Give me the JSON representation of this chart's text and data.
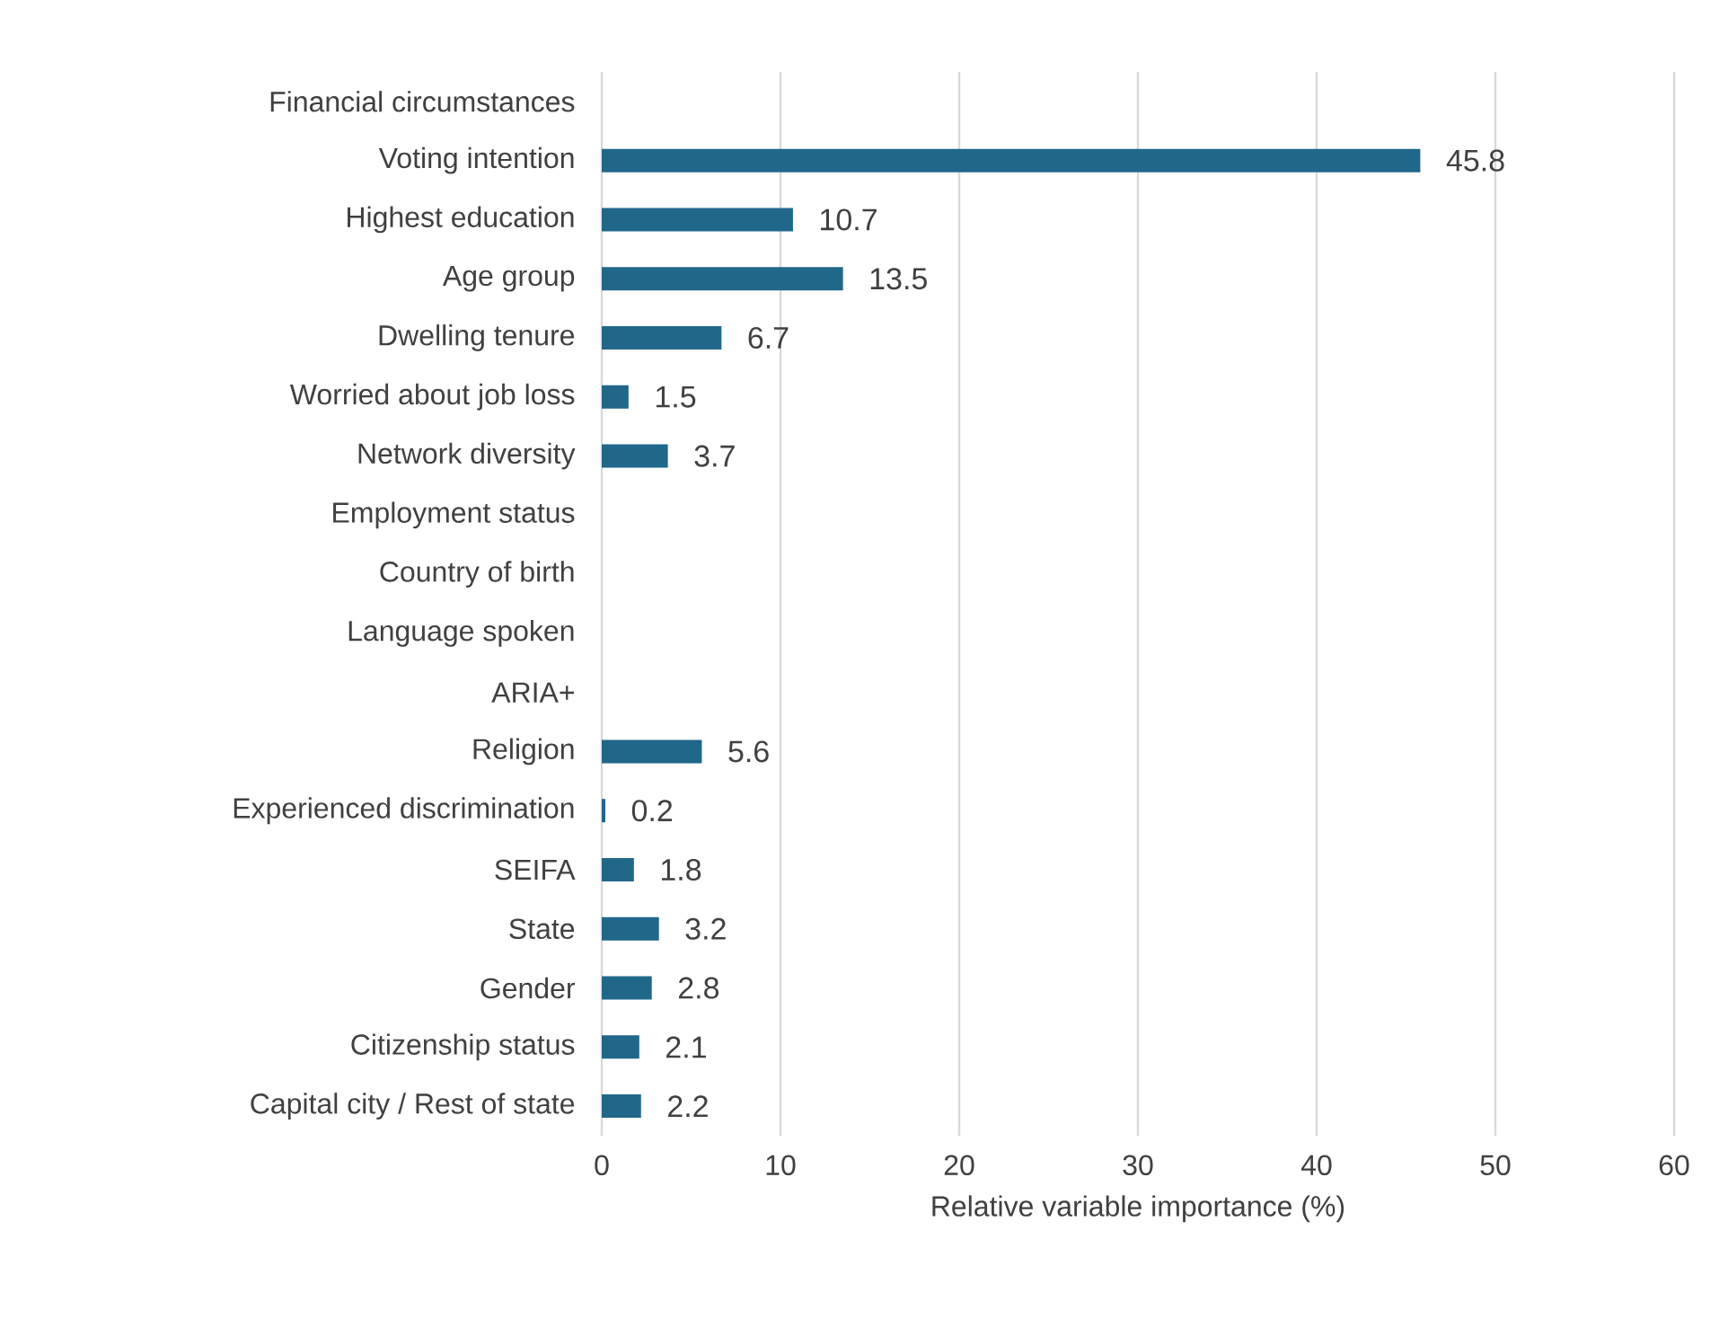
{
  "chart_data": {
    "type": "bar",
    "orientation": "horizontal",
    "categories": [
      "Financial circumstances",
      "Voting intention",
      "Highest education",
      "Age group",
      "Dwelling tenure",
      "Worried about job loss",
      "Network diversity",
      "Employment status",
      "Country of birth",
      "Language spoken",
      "ARIA+",
      "Religion",
      "Experienced discrimination",
      "SEIFA",
      "State",
      "Gender",
      "Citizenship status",
      "Capital city / Rest of state"
    ],
    "values": [
      null,
      45.8,
      10.7,
      13.5,
      6.7,
      1.5,
      3.7,
      null,
      null,
      null,
      null,
      5.6,
      0.2,
      1.8,
      3.2,
      2.8,
      2.1,
      2.2
    ],
    "color": "#21678a",
    "xlim": [
      0,
      60
    ],
    "xticks": [
      0,
      10,
      20,
      30,
      40,
      50,
      60
    ],
    "xlabel": "Relative variable importance (%)",
    "grid": "x",
    "data_labels": true
  }
}
